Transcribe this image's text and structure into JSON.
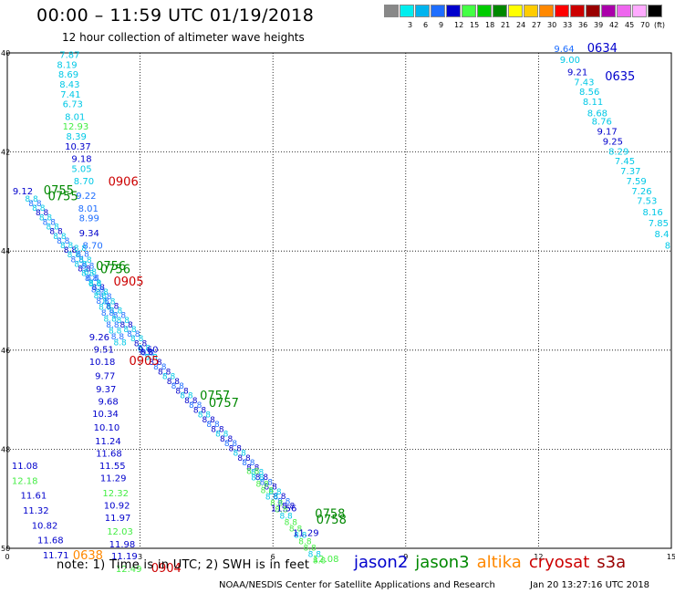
{
  "header": {
    "title": "00:00 – 11:59 UTC 01/19/2018",
    "subtitle": "12 hour collection of altimeter wave heights"
  },
  "legend": {
    "unit": "(ft)",
    "items": [
      {
        "label": "",
        "color": "#888888"
      },
      {
        "label": "3",
        "color": "#00eeee"
      },
      {
        "label": "6",
        "color": "#00b4ee"
      },
      {
        "label": "9",
        "color": "#1e6eff"
      },
      {
        "label": "12",
        "color": "#0000cc"
      },
      {
        "label": "15",
        "color": "#44ff44"
      },
      {
        "label": "18",
        "color": "#00cc00"
      },
      {
        "label": "21",
        "color": "#008800"
      },
      {
        "label": "24",
        "color": "#ffff00"
      },
      {
        "label": "27",
        "color": "#ffcc00"
      },
      {
        "label": "30",
        "color": "#ff8800"
      },
      {
        "label": "33",
        "color": "#ff0000"
      },
      {
        "label": "36",
        "color": "#cc0000"
      },
      {
        "label": "39",
        "color": "#990000"
      },
      {
        "label": "42",
        "color": "#aa00aa"
      },
      {
        "label": "45",
        "color": "#ee66ee"
      },
      {
        "label": "70",
        "color": "#ffaaff"
      },
      {
        "label": "",
        "color": "#000000"
      }
    ]
  },
  "map": {
    "lat_ticks": [
      "40",
      "42",
      "44",
      "46",
      "48",
      "50"
    ],
    "lon_ticks": [
      "0",
      "3",
      "6",
      "9",
      "12",
      "15"
    ],
    "labels": [
      {
        "t": "7.87",
        "lon": 1.18,
        "lat": 40.1,
        "c": "#00c8e6"
      },
      {
        "t": "8.19",
        "lon": 1.12,
        "lat": 40.3,
        "c": "#00c8e6"
      },
      {
        "t": "8.69",
        "lon": 1.15,
        "lat": 40.5,
        "c": "#00c8e6"
      },
      {
        "t": "8.43",
        "lon": 1.18,
        "lat": 40.7,
        "c": "#00c8e6"
      },
      {
        "t": "7.41",
        "lon": 1.2,
        "lat": 40.9,
        "c": "#00c8e6"
      },
      {
        "t": "6.73",
        "lon": 1.25,
        "lat": 41.1,
        "c": "#00c8e6"
      },
      {
        "t": "8.01",
        "lon": 1.3,
        "lat": 41.35,
        "c": "#00c8e6"
      },
      {
        "t": "12.93",
        "lon": 1.25,
        "lat": 41.55,
        "c": "#44ee44"
      },
      {
        "t": "8.39",
        "lon": 1.33,
        "lat": 41.75,
        "c": "#00c8e6"
      },
      {
        "t": "10.37",
        "lon": 1.3,
        "lat": 41.95,
        "c": "#0000cc"
      },
      {
        "t": "9.18",
        "lon": 1.45,
        "lat": 42.2,
        "c": "#0000cc"
      },
      {
        "t": "5.05",
        "lon": 1.45,
        "lat": 42.4,
        "c": "#00c8e6"
      },
      {
        "t": "8.70",
        "lon": 1.5,
        "lat": 42.65,
        "c": "#00c8e6"
      },
      {
        "t": "0906",
        "lon": 2.28,
        "lat": 42.68,
        "c": "#cc0000",
        "big": true
      },
      {
        "t": "9.12",
        "lon": 0.12,
        "lat": 42.85,
        "c": "#0000cc"
      },
      {
        "t": "0755",
        "lon": 0.82,
        "lat": 42.85,
        "c": "#008800",
        "big": true
      },
      {
        "t": "0755",
        "lon": 0.92,
        "lat": 42.97,
        "c": "#008800",
        "big": true
      },
      {
        "t": "9.22",
        "lon": 1.55,
        "lat": 42.95,
        "c": "#1e6eff"
      },
      {
        "t": "8.01",
        "lon": 1.6,
        "lat": 43.2,
        "c": "#1e6eff"
      },
      {
        "t": "8.99",
        "lon": 1.62,
        "lat": 43.4,
        "c": "#1e6eff"
      },
      {
        "t": "9.34",
        "lon": 1.62,
        "lat": 43.7,
        "c": "#0000cc"
      },
      {
        "t": "8.70",
        "lon": 1.7,
        "lat": 43.95,
        "c": "#1e6eff"
      },
      {
        "t": "0756",
        "lon": 2.0,
        "lat": 44.38,
        "c": "#008800",
        "big": true
      },
      {
        "t": "0756",
        "lon": 2.1,
        "lat": 44.45,
        "c": "#008800",
        "big": true
      },
      {
        "t": "0905",
        "lon": 2.4,
        "lat": 44.7,
        "c": "#cc0000",
        "big": true
      },
      {
        "t": "9.26",
        "lon": 1.85,
        "lat": 45.8,
        "c": "#0000cc"
      },
      {
        "t": "9.51",
        "lon": 1.95,
        "lat": 46.05,
        "c": "#0000cc"
      },
      {
        "t": "9.60",
        "lon": 2.95,
        "lat": 46.05,
        "c": "#0000cc"
      },
      {
        "t": "10.18",
        "lon": 1.85,
        "lat": 46.3,
        "c": "#0000cc"
      },
      {
        "t": "0905",
        "lon": 2.75,
        "lat": 46.3,
        "c": "#cc0000",
        "big": true
      },
      {
        "t": "9.77",
        "lon": 1.98,
        "lat": 46.58,
        "c": "#0000cc"
      },
      {
        "t": "9.37",
        "lon": 2.0,
        "lat": 46.85,
        "c": "#0000cc"
      },
      {
        "t": "0757",
        "lon": 4.35,
        "lat": 47.0,
        "c": "#008800",
        "big": true
      },
      {
        "t": "0757",
        "lon": 4.55,
        "lat": 47.15,
        "c": "#008800",
        "big": true
      },
      {
        "t": "9.68",
        "lon": 2.05,
        "lat": 47.1,
        "c": "#0000cc"
      },
      {
        "t": "10.34",
        "lon": 1.92,
        "lat": 47.35,
        "c": "#0000cc"
      },
      {
        "t": "10.10",
        "lon": 1.95,
        "lat": 47.62,
        "c": "#0000cc"
      },
      {
        "t": "11.24",
        "lon": 1.98,
        "lat": 47.9,
        "c": "#0000cc"
      },
      {
        "t": "11.68",
        "lon": 2.0,
        "lat": 48.15,
        "c": "#0000cc"
      },
      {
        "t": "11.55",
        "lon": 2.08,
        "lat": 48.4,
        "c": "#0000cc"
      },
      {
        "t": "11.29",
        "lon": 2.1,
        "lat": 48.65,
        "c": "#0000cc"
      },
      {
        "t": "11.08",
        "lon": 0.1,
        "lat": 48.4,
        "c": "#0000cc"
      },
      {
        "t": "12.18",
        "lon": 0.1,
        "lat": 48.7,
        "c": "#44ee44"
      },
      {
        "t": "12.32",
        "lon": 2.15,
        "lat": 48.95,
        "c": "#44ee44"
      },
      {
        "t": "11.61",
        "lon": 0.3,
        "lat": 49.0,
        "c": "#0000cc"
      },
      {
        "t": "10.92",
        "lon": 2.18,
        "lat": 49.2,
        "c": "#0000cc"
      },
      {
        "t": "11.32",
        "lon": 0.35,
        "lat": 49.3,
        "c": "#0000cc"
      },
      {
        "t": "11.97",
        "lon": 2.2,
        "lat": 49.45,
        "c": "#0000cc"
      },
      {
        "t": "12.03",
        "lon": 2.25,
        "lat": 49.72,
        "c": "#44ee44"
      },
      {
        "t": "10.82",
        "lon": 0.55,
        "lat": 49.6,
        "c": "#0000cc"
      },
      {
        "t": "11.98",
        "lon": 2.3,
        "lat": 49.98,
        "c": "#0000cc"
      },
      {
        "t": "11.68",
        "lon": 0.68,
        "lat": 49.9,
        "c": "#0000cc"
      },
      {
        "t": "11.19",
        "lon": 2.35,
        "lat": 50.22,
        "c": "#0000cc"
      },
      {
        "t": "11.71",
        "lon": 0.8,
        "lat": 50.2,
        "c": "#0000cc"
      },
      {
        "t": "0638",
        "lon": 1.48,
        "lat": 50.22,
        "c": "#ff8800",
        "big": true
      },
      {
        "t": "12.49",
        "lon": 2.45,
        "lat": 50.48,
        "c": "#44ee44"
      },
      {
        "t": "0904",
        "lon": 3.25,
        "lat": 50.48,
        "c": "#cc0000",
        "big": true
      },
      {
        "t": "11.56",
        "lon": 5.95,
        "lat": 49.25,
        "c": "#0000cc"
      },
      {
        "t": "0758",
        "lon": 6.95,
        "lat": 49.38,
        "c": "#008800",
        "big": true
      },
      {
        "t": "0758",
        "lon": 6.98,
        "lat": 49.5,
        "c": "#008800",
        "big": true
      },
      {
        "t": "11.29",
        "lon": 6.45,
        "lat": 49.75,
        "c": "#0000cc"
      },
      {
        "t": "12.08",
        "lon": 6.9,
        "lat": 50.28,
        "c": "#44ee44"
      },
      {
        "t": "9.64",
        "lon": 12.35,
        "lat": 39.98,
        "c": "#1e6eff"
      },
      {
        "t": "0634",
        "lon": 13.1,
        "lat": 39.98,
        "c": "#0000cc",
        "big": true
      },
      {
        "t": "9.00",
        "lon": 12.48,
        "lat": 40.2,
        "c": "#00c8e6"
      },
      {
        "t": "9.21",
        "lon": 12.65,
        "lat": 40.45,
        "c": "#0000cc"
      },
      {
        "t": "0635",
        "lon": 13.5,
        "lat": 40.55,
        "c": "#0000cc",
        "big": true
      },
      {
        "t": "7.43",
        "lon": 12.8,
        "lat": 40.65,
        "c": "#00c8e6"
      },
      {
        "t": "8.56",
        "lon": 12.92,
        "lat": 40.85,
        "c": "#00c8e6"
      },
      {
        "t": "8.11",
        "lon": 13.0,
        "lat": 41.05,
        "c": "#00c8e6"
      },
      {
        "t": "8.68",
        "lon": 13.1,
        "lat": 41.28,
        "c": "#00c8e6"
      },
      {
        "t": "8.76",
        "lon": 13.2,
        "lat": 41.45,
        "c": "#00c8e6"
      },
      {
        "t": "9.17",
        "lon": 13.32,
        "lat": 41.65,
        "c": "#0000cc"
      },
      {
        "t": "9.25",
        "lon": 13.45,
        "lat": 41.85,
        "c": "#0000cc"
      },
      {
        "t": "8.29",
        "lon": 13.58,
        "lat": 42.05,
        "c": "#00c8e6"
      },
      {
        "t": "7.45",
        "lon": 13.72,
        "lat": 42.25,
        "c": "#00c8e6"
      },
      {
        "t": "7.37",
        "lon": 13.85,
        "lat": 42.45,
        "c": "#00c8e6"
      },
      {
        "t": "7.59",
        "lon": 13.98,
        "lat": 42.65,
        "c": "#00c8e6"
      },
      {
        "t": "7.26",
        "lon": 14.1,
        "lat": 42.85,
        "c": "#00c8e6"
      },
      {
        "t": "7.53",
        "lon": 14.22,
        "lat": 43.05,
        "c": "#00c8e6"
      },
      {
        "t": "8.16",
        "lon": 14.35,
        "lat": 43.28,
        "c": "#00c8e6"
      },
      {
        "t": "7.85",
        "lon": 14.48,
        "lat": 43.5,
        "c": "#00c8e6"
      },
      {
        "t": "8.4",
        "lon": 14.62,
        "lat": 43.72,
        "c": "#00c8e6"
      },
      {
        "t": "8",
        "lon": 14.85,
        "lat": 43.95,
        "c": "#00c8e6"
      }
    ]
  },
  "note": "note: 1) Time is in UTC; 2) SWH is in feet",
  "satellites": [
    {
      "name": "jason2",
      "color": "#0000cc"
    },
    {
      "name": "jason3",
      "color": "#008800"
    },
    {
      "name": "altika",
      "color": "#ff8800"
    },
    {
      "name": "cryosat",
      "color": "#cc0000"
    },
    {
      "name": "s3a",
      "color": "#990000"
    }
  ],
  "footer": {
    "org": "NOAA/NESDIS Center for Satellite Applications and Research",
    "timestamp": "Jan 20 13:27:16 UTC 2018"
  }
}
